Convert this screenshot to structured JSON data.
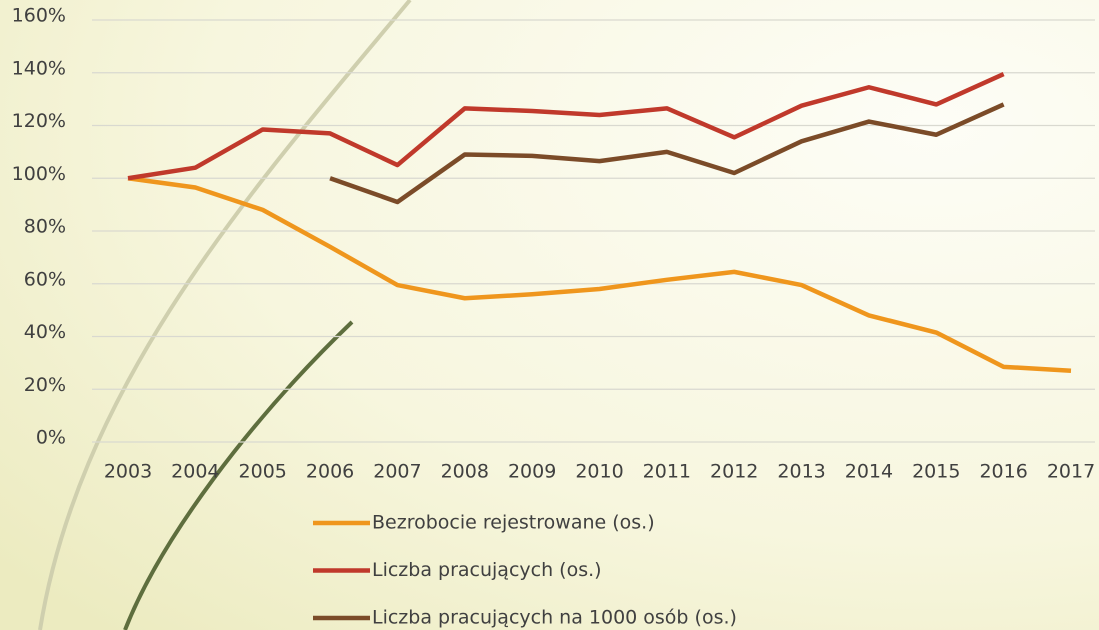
{
  "chart_data": {
    "type": "line",
    "categories": [
      "2003",
      "2004",
      "2005",
      "2006",
      "2007",
      "2008",
      "2009",
      "2010",
      "2011",
      "2012",
      "2013",
      "2014",
      "2015",
      "2016",
      "2017"
    ],
    "series": [
      {
        "name": "Bezrobocie rejestrowane (os.)",
        "color": "#ef961d",
        "values": [
          100,
          96.5,
          88,
          74,
          59.5,
          54.5,
          56,
          58,
          61.5,
          64.5,
          59.5,
          48,
          41.5,
          28.5,
          27
        ]
      },
      {
        "name": "Liczba pracujących (os.)",
        "color": "#c0392b",
        "values": [
          100,
          104,
          118.5,
          117,
          105,
          126.5,
          125.5,
          124,
          126.5,
          115.5,
          127.5,
          134.5,
          128,
          139.5,
          null
        ]
      },
      {
        "name": "Liczba pracujących na 1000 osób (os.)",
        "color": "#7b4b28",
        "values": [
          null,
          null,
          null,
          100,
          91,
          109,
          108.5,
          106.5,
          110,
          102,
          114,
          121.5,
          116.5,
          128,
          null
        ]
      }
    ],
    "ylim": [
      0,
      160
    ],
    "yticks": [
      {
        "value": 0,
        "label": "0%"
      },
      {
        "value": 20,
        "label": "20%"
      },
      {
        "value": 40,
        "label": "40%"
      },
      {
        "value": 60,
        "label": "60%"
      },
      {
        "value": 80,
        "label": "80%"
      },
      {
        "value": 100,
        "label": "100%"
      },
      {
        "value": 120,
        "label": "120%"
      },
      {
        "value": 140,
        "label": "140%"
      },
      {
        "value": 160,
        "label": "160%"
      }
    ],
    "grid": true,
    "legend": "bottom"
  }
}
